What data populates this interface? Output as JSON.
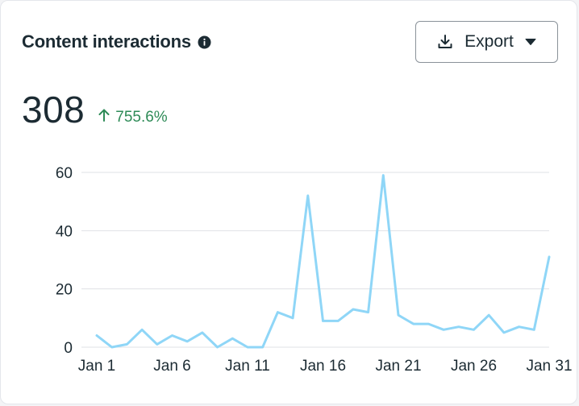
{
  "card": {
    "title": "Content interactions",
    "export_label": "Export"
  },
  "metric": {
    "value": "308",
    "change": "755.6%",
    "change_direction": "up"
  },
  "colors": {
    "line": "#8fd6f7",
    "positive": "#2e8b57",
    "grid": "#dfe1e5",
    "text": "#1c2b33"
  },
  "icons": {
    "info": "info-icon",
    "export": "download-icon",
    "dropdown": "caret-down-icon",
    "change": "arrow-up-icon"
  },
  "chart_data": {
    "type": "line",
    "title": "",
    "xlabel": "",
    "ylabel": "",
    "ylim": [
      0,
      60
    ],
    "yticks": [
      0,
      20,
      40,
      60
    ],
    "x_tick_labels": [
      "Jan 1",
      "Jan 6",
      "Jan 11",
      "Jan 16",
      "Jan 21",
      "Jan 26",
      "Jan 31"
    ],
    "x_tick_indices": [
      0,
      5,
      10,
      15,
      20,
      25,
      30
    ],
    "series": [
      {
        "name": "Content interactions",
        "values": [
          4,
          0,
          1,
          6,
          1,
          4,
          2,
          5,
          0,
          3,
          0,
          0,
          12,
          10,
          52,
          9,
          9,
          13,
          12,
          59,
          11,
          8,
          8,
          6,
          7,
          6,
          11,
          5,
          7,
          6,
          31
        ]
      }
    ]
  }
}
